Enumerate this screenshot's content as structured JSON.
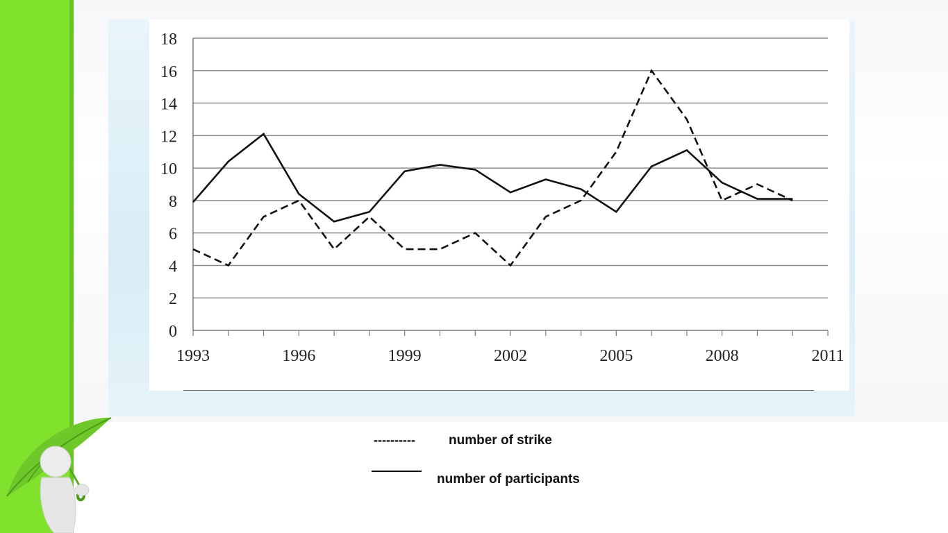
{
  "chart_data": {
    "type": "line",
    "x": [
      1993,
      1994,
      1995,
      1996,
      1997,
      1998,
      1999,
      2000,
      2001,
      2002,
      2003,
      2004,
      2005,
      2006,
      2007,
      2008,
      2009,
      2010
    ],
    "xticks": [
      "1993",
      "1996",
      "1999",
      "2002",
      "2005",
      "2008",
      "2011"
    ],
    "yticks": [
      "0",
      "2",
      "4",
      "6",
      "8",
      "10",
      "12",
      "14",
      "16",
      "18"
    ],
    "xlim": [
      1993,
      2011
    ],
    "ylim": [
      0,
      18
    ],
    "grid": "horizontal",
    "series": [
      {
        "name": "number of strike",
        "style": "dashed",
        "values": [
          5,
          4,
          7,
          8,
          5,
          7,
          5,
          5,
          6,
          4,
          7,
          8,
          11,
          16,
          13,
          8,
          9,
          8
        ]
      },
      {
        "name": "number of participants",
        "style": "solid",
        "values": [
          7.9,
          10.4,
          12.1,
          8.4,
          6.7,
          7.3,
          9.8,
          10.2,
          9.9,
          8.5,
          9.3,
          8.7,
          7.3,
          10.1,
          11.1,
          9.1,
          8.1,
          8.1
        ]
      }
    ],
    "title": "",
    "xlabel": "",
    "ylabel": ""
  },
  "legend": {
    "strike_marker": "----------",
    "strike_label": "number of strike",
    "participants_label": "number of participants"
  },
  "colors": {
    "accent_green": "#80e22c",
    "line_color": "#111111",
    "grid_color": "#8c8c8c"
  }
}
